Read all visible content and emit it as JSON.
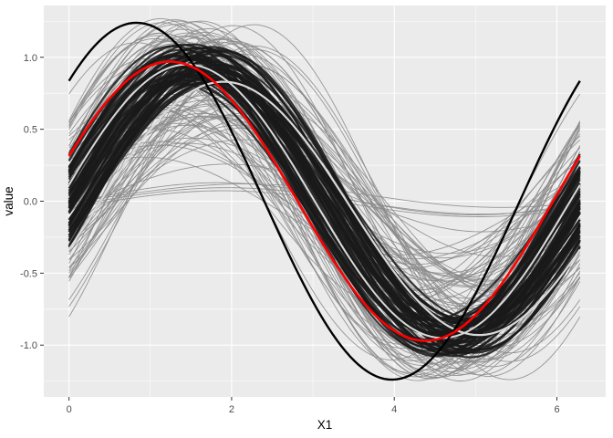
{
  "chart_data": {
    "type": "line",
    "title": "",
    "xlabel": "X1",
    "ylabel": "value",
    "xlim": [
      -0.31,
      6.6
    ],
    "ylim": [
      -1.36,
      1.36
    ],
    "x_ticks": [
      0,
      2,
      4,
      6
    ],
    "x_tick_labels": [
      "0",
      "2",
      "4",
      "6"
    ],
    "y_ticks": [
      -1.0,
      -0.5,
      0.0,
      0.5,
      1.0
    ],
    "y_tick_labels": [
      "-1.0",
      "-0.5",
      "0.0",
      "0.5",
      "1.0"
    ],
    "grid": true,
    "legend": "none",
    "x_range": [
      0,
      6.283
    ],
    "background_curves": {
      "description_style": "many thin grey sinusoid-like curves",
      "count": 110,
      "color": "#8c8c8c",
      "amplitude_range": [
        0.02,
        1.25
      ],
      "phase_shift_range": [
        -0.75,
        0.75
      ]
    },
    "band_curves": {
      "count": 60,
      "color": "#1a1a1a",
      "amplitude_range": [
        0.82,
        1.08
      ],
      "phase_shift_range": [
        -0.32,
        0.32
      ]
    },
    "highlight_curves": [
      {
        "color": "#d9d9d9",
        "amplitude": 0.88,
        "phase_shift": -0.33,
        "y_offset": -0.05,
        "width": 2.2
      },
      {
        "color": "#d9d9d9",
        "amplitude": 0.95,
        "phase_shift": 0.12,
        "y_offset": 0.0,
        "width": 2.0
      }
    ],
    "series": [
      {
        "color": "#000000",
        "amplitude": 1.24,
        "phase_shift": 0.74,
        "y_offset": 0.0,
        "width": 2.4
      },
      {
        "color": "#ff0000",
        "amplitude": 0.97,
        "phase_shift": 0.33,
        "y_offset": 0.0,
        "width": 2.6
      }
    ],
    "colors": {
      "panel_background": "#ebebeb",
      "grid_major": "#ffffff",
      "grid_minor": "#f5f5f5"
    }
  }
}
